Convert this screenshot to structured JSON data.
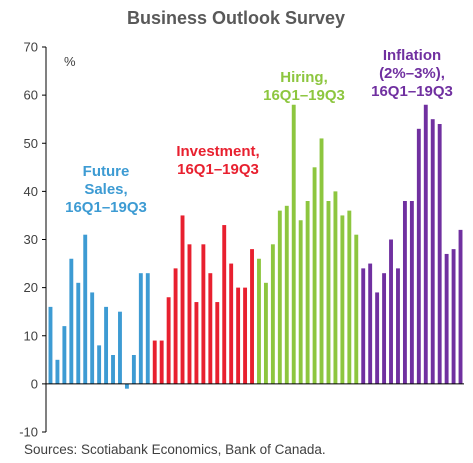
{
  "chart_data": {
    "type": "bar",
    "title": "Business Outlook Survey",
    "unit_label": "%",
    "ylim": [
      -10,
      70
    ],
    "yticks": [
      "-10",
      "0",
      "10",
      "20",
      "30",
      "40",
      "50",
      "60",
      "70"
    ],
    "grid": false,
    "colors": {
      "future_sales": "#3d9bd3",
      "investment": "#e8202f",
      "hiring": "#8dc63f",
      "inflation": "#7030a0"
    },
    "series": [
      {
        "label_lines": [
          "Future",
          "Sales,",
          "16Q1–19Q3"
        ],
        "color": "#3d9bd3",
        "values": [
          16,
          5,
          12,
          26,
          21,
          31,
          19,
          8,
          16,
          6,
          15,
          -1,
          6,
          23,
          23
        ]
      },
      {
        "label_lines": [
          "Investment,",
          "16Q1–19Q3"
        ],
        "color": "#e8202f",
        "values": [
          9,
          9,
          18,
          24,
          35,
          29,
          17,
          29,
          23,
          17,
          33,
          25,
          20,
          20,
          28
        ]
      },
      {
        "label_lines": [
          "Hiring,",
          "16Q1–19Q3"
        ],
        "color": "#8dc63f",
        "values": [
          26,
          21,
          29,
          36,
          37,
          58,
          34,
          38,
          45,
          51,
          38,
          40,
          35,
          36,
          31
        ]
      },
      {
        "label_lines": [
          "Inflation",
          "(2%–3%),",
          "16Q1–19Q3"
        ],
        "color": "#7030a0",
        "values": [
          24,
          25,
          19,
          23,
          30,
          24,
          38,
          38,
          53,
          58,
          55,
          54,
          27,
          28,
          32
        ]
      }
    ]
  },
  "footer": {
    "source": "Sources: Scotiabank Economics, Bank of Canada."
  }
}
